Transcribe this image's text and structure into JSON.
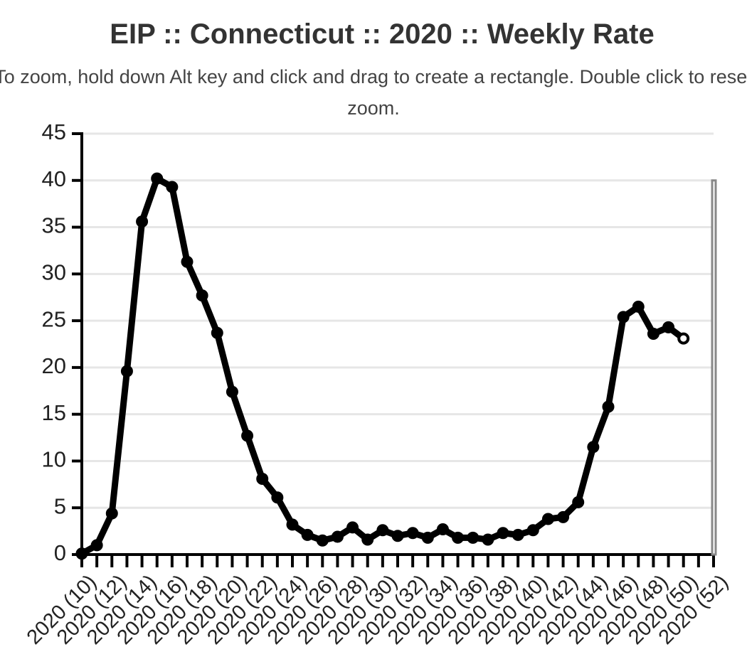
{
  "chart_data": {
    "type": "line",
    "title": "EIP :: Connecticut :: 2020 :: Weekly Rate",
    "subtitle": "To zoom, hold down Alt key and click and drag to create a rectangle. Double click to reset zoom.",
    "xlabel": "",
    "ylabel": "",
    "ylim": [
      0,
      45
    ],
    "yticks": [
      0,
      5,
      10,
      15,
      20,
      25,
      30,
      35,
      40,
      45
    ],
    "grid": true,
    "week_range": [
      10,
      52
    ],
    "x_tick_labels": [
      "2020 (10)",
      "2020 (12)",
      "2020 (14)",
      "2020 (16)",
      "2020 (18)",
      "2020 (20)",
      "2020 (22)",
      "2020 (24)",
      "2020 (26)",
      "2020 (28)",
      "2020 (30)",
      "2020 (32)",
      "2020 (34)",
      "2020 (36)",
      "2020 (38)",
      "2020 (40)",
      "2020 (42)",
      "2020 (44)",
      "2020 (46)",
      "2020 (48)",
      "2020 (50)",
      "2020 (52)"
    ],
    "series": [
      {
        "name": "Weekly Rate",
        "color": "#000000",
        "x": [
          10,
          11,
          12,
          13,
          14,
          15,
          16,
          17,
          18,
          19,
          20,
          21,
          22,
          23,
          24,
          25,
          26,
          27,
          28,
          29,
          30,
          31,
          32,
          33,
          34,
          35,
          36,
          37,
          38,
          39,
          40,
          41,
          42,
          43,
          44,
          45,
          46,
          47,
          48,
          49,
          50
        ],
        "values": [
          0.1,
          1.0,
          4.4,
          19.6,
          35.6,
          40.2,
          39.3,
          31.3,
          27.7,
          23.7,
          17.4,
          12.7,
          8.1,
          6.1,
          3.2,
          2.1,
          1.5,
          1.9,
          2.9,
          1.6,
          2.6,
          2.0,
          2.3,
          1.8,
          2.7,
          1.8,
          1.8,
          1.6,
          2.3,
          2.1,
          2.6,
          3.8,
          4.0,
          5.6,
          11.5,
          15.8,
          25.4,
          26.5,
          23.6,
          24.3,
          23.1
        ]
      }
    ]
  }
}
